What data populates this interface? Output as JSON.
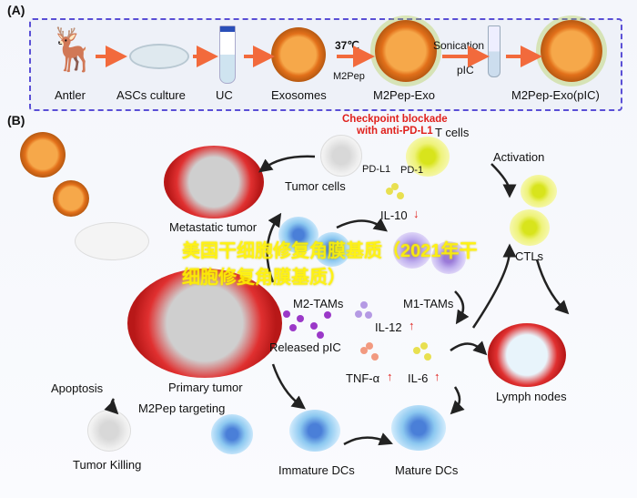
{
  "panel_a": {
    "label": "(A)",
    "steps": [
      "Antler",
      "ASCs culture",
      "UC",
      "Exosomes",
      "M2Pep-Exo",
      "M2Pep-Exo(pIC)"
    ],
    "temp": "37℃",
    "m2pep": "M2Pep",
    "sonication": "Sonication",
    "pic": "pIC"
  },
  "panel_b": {
    "label": "(B)",
    "checkpoint": "Checkpoint blockade",
    "anti": "with anti-PD-L1",
    "t_cells": "T cells",
    "pdl1": "PD-L1",
    "pd1": "PD-1",
    "tumor_cells": "Tumor cells",
    "activation": "Activation",
    "metastatic": "Metastatic tumor",
    "il10": "IL-10",
    "ctls": "CTLs",
    "m2_tams": "M2-TAMs",
    "m1_tams": "M1-TAMs",
    "il12": "IL-12",
    "released_pic": "Released pIC",
    "tnf": "TNF-α",
    "il6": "IL-6",
    "lymph": "Lymph nodes",
    "apoptosis": "Apoptosis",
    "primary": "Primary tumor",
    "targeting": "M2Pep targeting",
    "killing": "Tumor Killing",
    "immature": "Immature DCs",
    "mature": "Mature DCs",
    "up": "↑",
    "down": "↓"
  },
  "watermark": "美国干细胞修复角膜基质（2021年干细胞修复角膜基质）",
  "colors": {
    "arrow": "#f26a3c",
    "dashed_border": "#5a4fd6",
    "alert": "#e0201c",
    "watermark": "#fff200"
  }
}
